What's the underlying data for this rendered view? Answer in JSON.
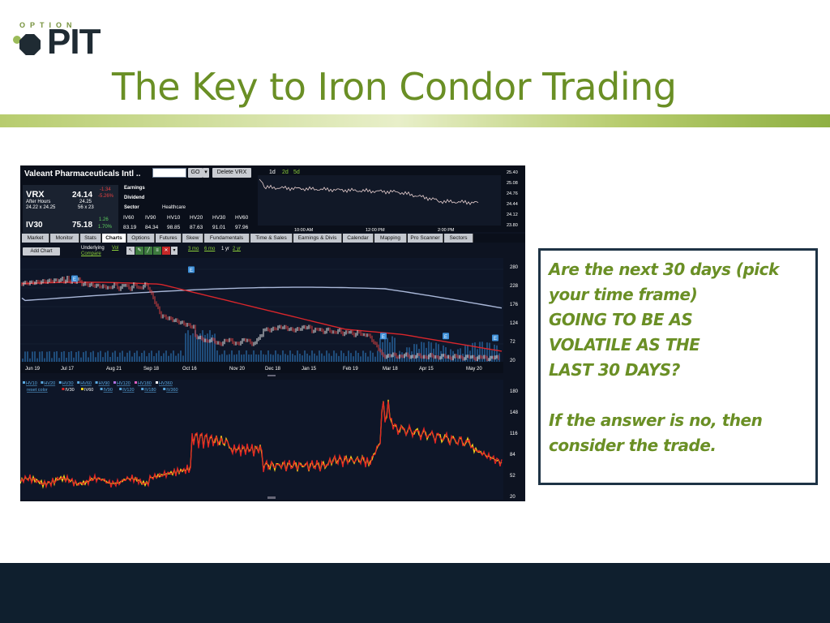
{
  "slide": {
    "title": "The Key to Iron Condor Trading",
    "logo": {
      "small": "OPTION",
      "big": "PIT"
    },
    "colors": {
      "title": "#6a8f25",
      "footer": "#0f1f2e",
      "chart_bg": "#0d1321"
    }
  },
  "platform": {
    "company": "Valeant Pharmaceuticals Intl ..",
    "go_label": "GO",
    "delete_label": "Delete VRX",
    "quote": {
      "symbol": "VRX",
      "price": "24.14",
      "change": "-1.34",
      "change_pct": "-5.26%",
      "after_hours_label": "After Hours",
      "after_hours_price": "24.25",
      "bid_ask": "24.22 x 24.25",
      "size": "56 x 23",
      "iv_label": "IV30",
      "iv_value": "75.18",
      "iv_change": "1.26",
      "iv_change_pct": "1.70%"
    },
    "info": {
      "earnings": "Earnings",
      "dividend": "Dividend",
      "sector": "Sector",
      "sector_value": "Healthcare"
    },
    "iv_headers": [
      "IV60",
      "IV90",
      "HV10",
      "HV20",
      "HV30",
      "HV60"
    ],
    "iv_values": [
      "83.19",
      "84.34",
      "98.85",
      "87.63",
      "91.01",
      "97.96"
    ],
    "intraday": {
      "periods": [
        "1d",
        "2d",
        "5d"
      ],
      "y_ticks": [
        "25.40",
        "25.08",
        "24.76",
        "24.44",
        "24.12",
        "23.80"
      ],
      "x_ticks": [
        "10:00 AM",
        "12:00 PM",
        "2:00 PM"
      ]
    },
    "tabs": [
      "Market",
      "Monitor",
      "Stats",
      "Charts",
      "Options",
      "Futures",
      "Skew",
      "Fundamentals",
      "Time & Sales",
      "Earnings & Divis",
      "Calendar",
      "Mapping",
      "Pro Scanner",
      "Sectors"
    ],
    "active_tab": "Charts",
    "toolbar": {
      "add_chart": "Add Chart",
      "underlying": "Underlying",
      "vol": "Vol",
      "compare": "Compare",
      "ranges": [
        "3 mo",
        "6 mo",
        "1 yr",
        "2 yr"
      ],
      "active_range": "1 yr"
    },
    "price_chart": {
      "y_ticks": [
        "280",
        "228",
        "176",
        "124",
        "72",
        "20"
      ],
      "x_ticks": [
        "Jun 19",
        "Jul 17",
        "Aug 21",
        "Sep 18",
        "Oct 16",
        "Nov 20",
        "Dec 18",
        "Jan 15",
        "Feb 19",
        "Mar 18",
        "Apr 15",
        "May 20"
      ],
      "earnings_marker": "E",
      "colors": {
        "price": "#e8e8e8",
        "ma_red": "#d8262b",
        "ma_blue": "#a9b7d8",
        "volume": "#1f4c7a"
      }
    },
    "vol_chart": {
      "y_ticks": [
        "180",
        "148",
        "116",
        "84",
        "52",
        "20"
      ],
      "legend_row1": [
        "HV10",
        "HV20",
        "HV30",
        "HV60",
        "HV90",
        "HV120",
        "HV180",
        "HV360"
      ],
      "legend_row2": [
        "reset color",
        "IV30",
        "IV60",
        "IV90",
        "IV120",
        "IV180",
        "IV360"
      ],
      "colors": {
        "iv30": "#e02424",
        "iv60": "#f2d21b"
      }
    }
  },
  "textbox": {
    "lines": [
      "Are the next 30 days (pick",
      "your time frame)",
      "GOING TO BE AS",
      "VOLATILE AS THE",
      "LAST 30 DAYS?"
    ],
    "lines2": [
      "If the answer is no, then",
      "consider the trade."
    ]
  }
}
